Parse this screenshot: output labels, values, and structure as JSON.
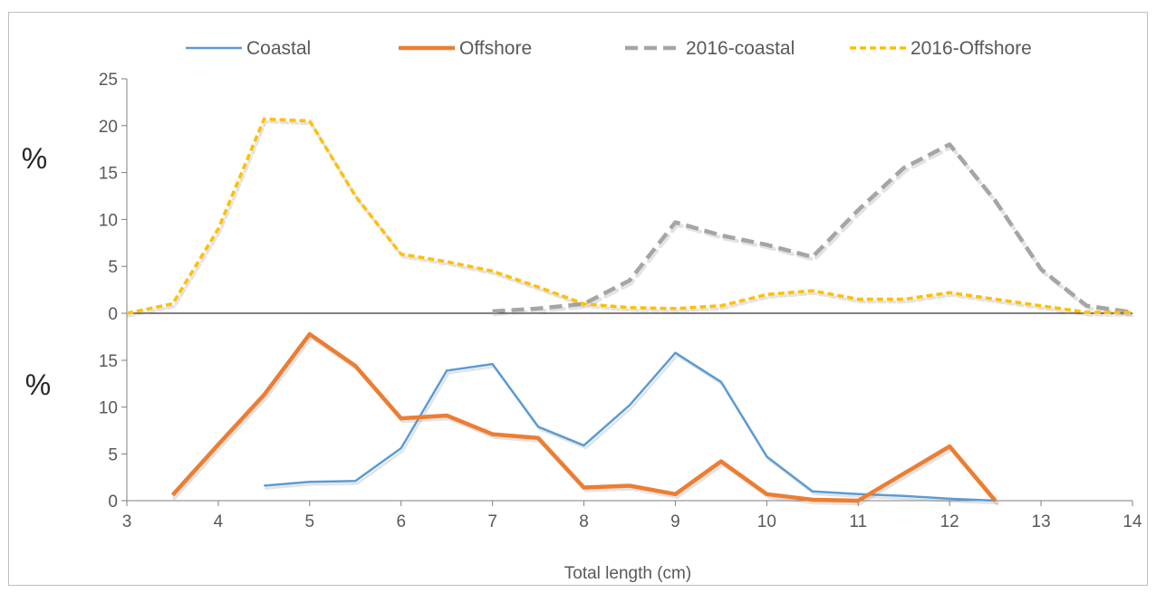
{
  "chart_data": {
    "type": "line",
    "xlabel": "Total length (cm)",
    "x_ticks": [
      3,
      4,
      5,
      6,
      7,
      8,
      9,
      10,
      11,
      12,
      13,
      14
    ],
    "xlim": [
      3,
      14
    ],
    "legend_position": "top",
    "grid": false,
    "panels": [
      {
        "name": "upper",
        "ylabel": "%",
        "ylim": [
          0,
          25
        ],
        "y_ticks": [
          0,
          5,
          10,
          15,
          20,
          25
        ],
        "series": [
          {
            "name": "2016-coastal",
            "style": "dashed",
            "color": "#A5A5A5",
            "x": [
              7,
              7.5,
              8,
              8.5,
              9,
              9.5,
              10,
              10.5,
              11,
              11.5,
              12,
              12.5,
              13,
              13.5,
              14
            ],
            "values": [
              0.2,
              0.5,
              1.0,
              3.5,
              9.7,
              8.3,
              7.3,
              6.0,
              11.0,
              15.5,
              18.0,
              12.0,
              4.7,
              0.8,
              0.1
            ]
          },
          {
            "name": "2016-Offshore",
            "style": "dotted",
            "color": "#FFC000",
            "x": [
              3,
              3.5,
              4,
              4.5,
              5,
              5.5,
              6,
              6.5,
              7,
              7.5,
              8,
              8.5,
              9,
              9.5,
              10,
              10.5,
              11,
              11.5,
              12,
              12.5,
              13,
              13.5,
              14
            ],
            "values": [
              0.0,
              1.0,
              9.0,
              20.7,
              20.5,
              12.5,
              6.3,
              5.5,
              4.5,
              2.8,
              1.0,
              0.6,
              0.5,
              0.8,
              2.0,
              2.4,
              1.5,
              1.5,
              2.2,
              1.5,
              0.8,
              0.1,
              0.1
            ]
          }
        ]
      },
      {
        "name": "lower",
        "ylabel": "%",
        "ylim": [
          0,
          20
        ],
        "y_ticks": [
          0,
          5,
          10,
          15
        ],
        "series": [
          {
            "name": "Coastal",
            "style": "solid",
            "color": "#5B9BD5",
            "x": [
              4.5,
              5,
              5.5,
              6,
              6.5,
              7,
              7.5,
              8,
              8.5,
              9,
              9.5,
              10,
              10.5,
              11,
              11.5,
              12,
              12.5
            ],
            "values": [
              1.6,
              2.0,
              2.1,
              5.6,
              13.9,
              14.6,
              7.9,
              5.9,
              10.2,
              15.8,
              12.7,
              4.7,
              1.0,
              0.7,
              0.5,
              0.2,
              0.0
            ]
          },
          {
            "name": "Offshore",
            "style": "solid-thick",
            "color": "#ED7D31",
            "x": [
              3.5,
              4,
              4.5,
              5,
              5.5,
              6,
              6.5,
              7,
              7.5,
              8,
              8.5,
              9,
              9.5,
              10,
              10.5,
              11,
              11.5,
              12,
              12.5
            ],
            "values": [
              0.6,
              6.0,
              11.3,
              17.8,
              14.4,
              8.8,
              9.1,
              7.1,
              6.7,
              1.4,
              1.6,
              0.7,
              4.2,
              0.7,
              0.1,
              0.0,
              2.9,
              5.8,
              0.0
            ]
          }
        ]
      }
    ],
    "legend": [
      "Coastal",
      "Offshore",
      "2016-coastal",
      "2016-Offshore"
    ]
  }
}
